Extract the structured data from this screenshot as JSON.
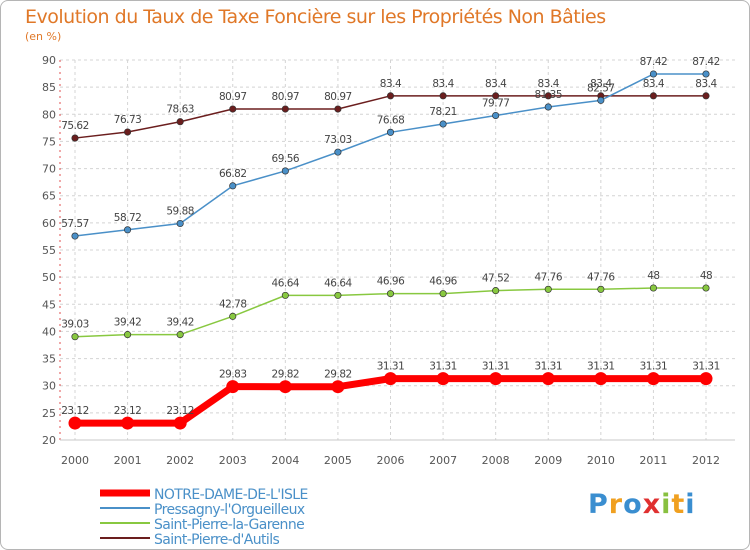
{
  "chart_data": {
    "type": "line",
    "title": "Evolution du Taux de Taxe Foncière sur les Propriétés Non Bâties",
    "ylabel": "(en %)",
    "xlabel": "",
    "ylim": [
      20,
      90
    ],
    "yticks": [
      20,
      25,
      30,
      35,
      40,
      45,
      50,
      55,
      60,
      65,
      70,
      75,
      80,
      85,
      90
    ],
    "categories": [
      "2000",
      "2001",
      "2002",
      "2003",
      "2004",
      "2005",
      "2006",
      "2007",
      "2008",
      "2009",
      "2010",
      "2011",
      "2012"
    ],
    "grid": true,
    "legend_position": "bottom-left",
    "series": [
      {
        "name": "NOTRE-DAME-DE-L'ISLE",
        "color": "#ff0000",
        "values": [
          23.12,
          23.12,
          23.12,
          29.83,
          29.82,
          29.82,
          31.31,
          31.31,
          31.31,
          31.31,
          31.31,
          31.31,
          31.31
        ],
        "labels": [
          "23.12",
          "23.12",
          "23.12",
          "29.83",
          "29.82",
          "29.82",
          "31.31",
          "31.31",
          "31.31",
          "31.31",
          "31.31",
          "31.31",
          "31.31"
        ]
      },
      {
        "name": "Pressagny-l'Orgueilleux",
        "color": "#4a90c8",
        "values": [
          57.57,
          58.72,
          59.88,
          66.82,
          69.56,
          73.03,
          76.68,
          78.21,
          79.77,
          81.35,
          82.57,
          87.42,
          87.42
        ],
        "labels": [
          "57.57",
          "58.72",
          "59.88",
          "66.82",
          "69.56",
          "73.03",
          "76.68",
          "78.21",
          "79.77",
          "81.35",
          "82.57",
          "87.42",
          "87.42"
        ]
      },
      {
        "name": "Saint-Pierre-la-Garenne",
        "color": "#88c840",
        "values": [
          39.03,
          39.42,
          39.42,
          42.78,
          46.64,
          46.64,
          46.96,
          46.96,
          47.52,
          47.76,
          47.76,
          48,
          48
        ],
        "labels": [
          "39.03",
          "39.42",
          "39.42",
          "42.78",
          "46.64",
          "46.64",
          "46.96",
          "46.96",
          "47.52",
          "47.76",
          "47.76",
          "48",
          "48"
        ]
      },
      {
        "name": "Saint-Pierre-d'Autils",
        "color": "#6b1e1e",
        "values": [
          75.62,
          76.73,
          78.63,
          80.97,
          80.97,
          80.97,
          83.4,
          83.4,
          83.4,
          83.4,
          83.4,
          83.4,
          83.4
        ],
        "labels": [
          "75.62",
          "76.73",
          "78.63",
          "80.97",
          "80.97",
          "80.97",
          "83.4",
          "83.4",
          "83.4",
          "83.4",
          "83.4",
          "83.4",
          "83.4"
        ]
      }
    ]
  },
  "logo": {
    "letters": [
      "P",
      "r",
      "o",
      "x",
      "i",
      "t",
      "i"
    ],
    "colors": [
      "#3a8ed0",
      "#f0a020",
      "#3a8ed0",
      "#e03030",
      "#88c040",
      "#f0a020",
      "#3a8ed0"
    ]
  }
}
